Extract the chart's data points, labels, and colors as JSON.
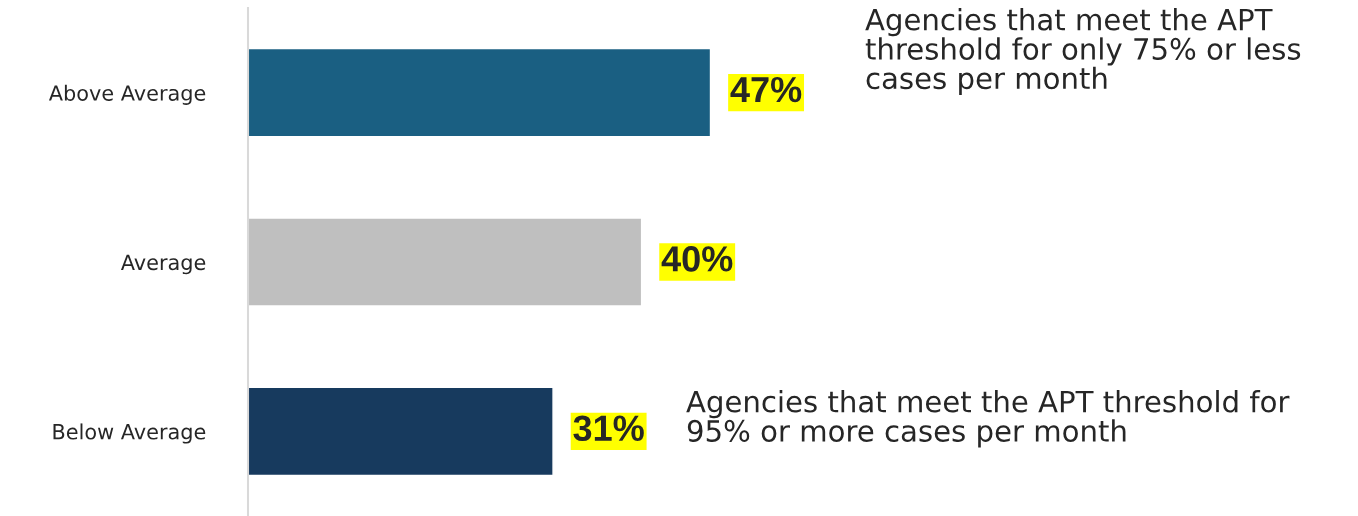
{
  "chart_data": {
    "type": "bar",
    "orientation": "horizontal",
    "categories": [
      "Above Average",
      "Average",
      "Below Average"
    ],
    "values": [
      47,
      40,
      31
    ],
    "colors": [
      "#1a5f82",
      "#bfbfbf",
      "#173a5e"
    ],
    "value_labels": [
      "47%",
      "40%",
      "31%"
    ],
    "annotations": [
      "Agencies that meet the APT threshold for only 75% or less cases per month",
      "Agencies that meet the APT threshold for 95% or more cases per month"
    ],
    "grid": false,
    "legend": false
  }
}
